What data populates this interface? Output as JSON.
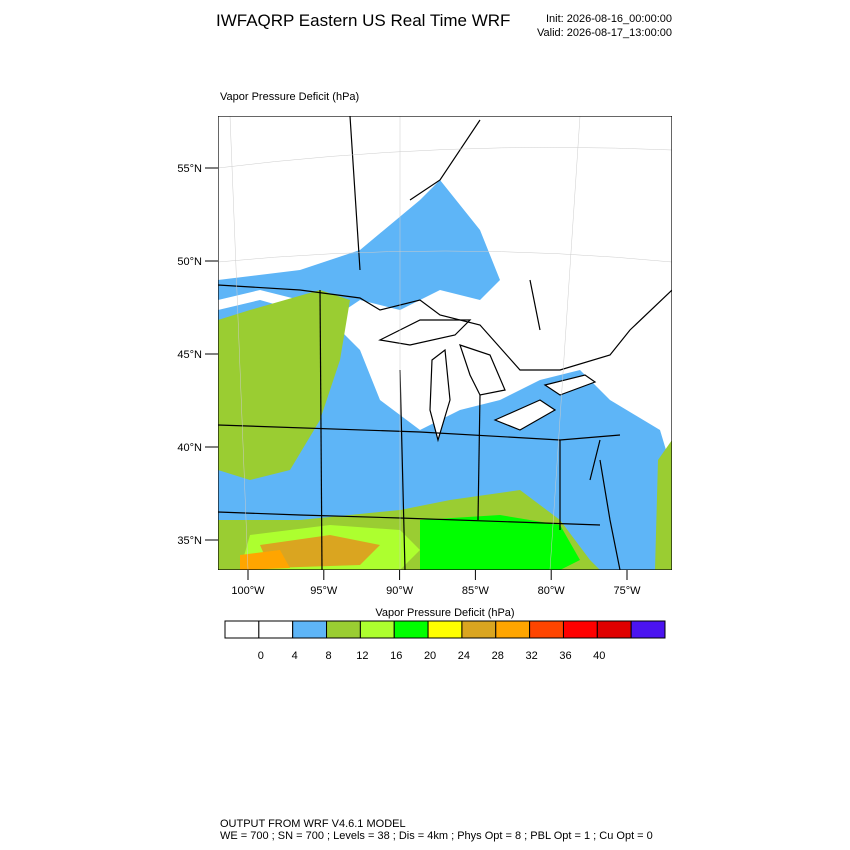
{
  "title": "IWFAQRP Eastern US Real Time WRF",
  "init": "Init: 2026-08-16_00:00:00",
  "valid": "Valid: 2026-08-17_13:00:00",
  "plot_title": "Vapor Pressure Deficit   (hPa)",
  "lat_labels": [
    "55°N",
    "50°N",
    "45°N",
    "40°N",
    "35°N"
  ],
  "lon_labels": [
    "100°W",
    "95°W",
    "90°W",
    "85°W",
    "80°W",
    "75°W"
  ],
  "colorbar": {
    "title": "Vapor Pressure Deficit  (hPa)",
    "colors": [
      "#ffffff",
      "#ffffff",
      "#5eb5f7",
      "#9acd32",
      "#adff2f",
      "#00ff00",
      "#ffff00",
      "#daa520",
      "#ffa500",
      "#ff4500",
      "#ff0000",
      "#e00000",
      "#4b14f0"
    ],
    "levels": [
      0,
      4,
      8,
      12,
      16,
      20,
      24,
      28,
      32,
      36,
      40
    ]
  },
  "footer": [
    "OUTPUT FROM WRF V4.6.1 MODEL",
    "WE = 700 ; SN = 700 ; Levels = 38 ; Dis = 4km ; Phys Opt = 8 ; PBL Opt = 1 ; Cu Opt = 0"
  ]
}
